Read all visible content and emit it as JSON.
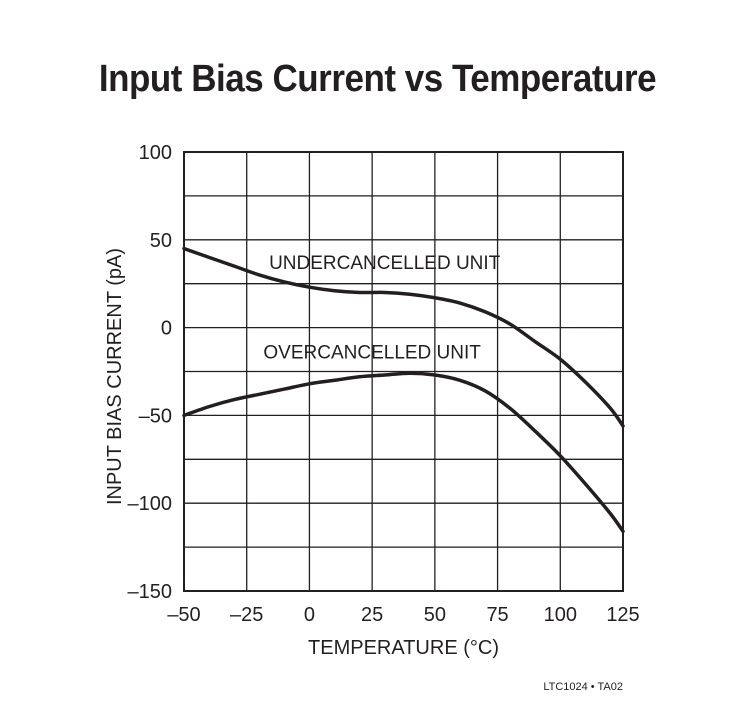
{
  "chart_data": {
    "type": "line",
    "title": "Input Bias Current vs Temperature",
    "xlabel": "TEMPERATURE (°C)",
    "ylabel": "INPUT BIAS CURRENT (pA)",
    "xlim": [
      -50,
      125
    ],
    "ylim": [
      -150,
      100
    ],
    "xticks": [
      -50,
      -25,
      0,
      25,
      50,
      75,
      100,
      125
    ],
    "xtick_labels": [
      "–50",
      "–25",
      "0",
      "25",
      "50",
      "75",
      "100",
      "125"
    ],
    "yticks": [
      100,
      50,
      0,
      -50,
      -100,
      -150
    ],
    "ytick_labels": [
      "100",
      "50",
      "0",
      "–50",
      "–100",
      "–150"
    ],
    "grid": true,
    "series": [
      {
        "name": "UNDERCANCELLED UNIT",
        "x": [
          -50,
          -40,
          -30,
          -20,
          -10,
          0,
          10,
          20,
          30,
          40,
          50,
          60,
          70,
          80,
          90,
          100,
          110,
          120,
          125
        ],
        "values": [
          45,
          40,
          35,
          30,
          26,
          23,
          21,
          20,
          20,
          19,
          17,
          14,
          9,
          2,
          -8,
          -18,
          -31,
          -46,
          -56
        ]
      },
      {
        "name": "OVERCANCELLED UNIT",
        "x": [
          -50,
          -40,
          -30,
          -20,
          -10,
          0,
          10,
          20,
          30,
          40,
          50,
          60,
          70,
          80,
          90,
          100,
          110,
          120,
          125
        ],
        "values": [
          -50,
          -45,
          -41,
          -38,
          -35,
          -32,
          -30,
          -28,
          -27,
          -26,
          -27,
          -30,
          -36,
          -46,
          -59,
          -73,
          -89,
          -106,
          -116
        ]
      }
    ]
  },
  "footer": {
    "code": "LTC1024 • TA02"
  }
}
